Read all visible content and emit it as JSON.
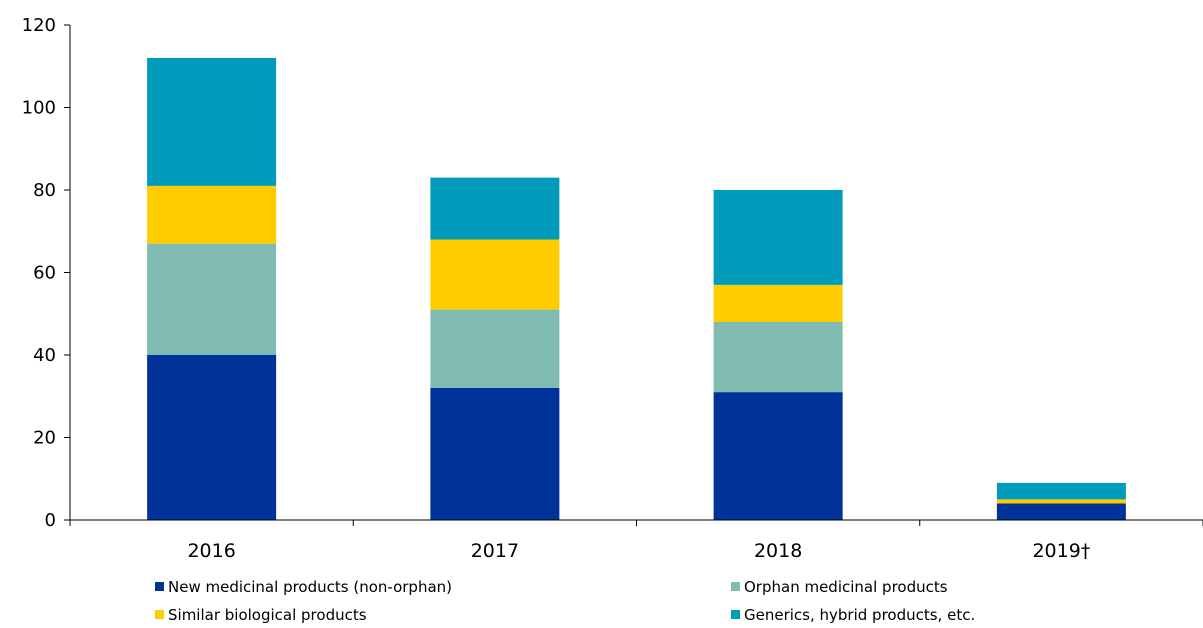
{
  "chart_data": {
    "type": "bar",
    "stacked": true,
    "categories": [
      "2016",
      "2017",
      "2018",
      "2019†"
    ],
    "series": [
      {
        "name": "New medicinal products (non-orphan)",
        "color": "#003399",
        "values": [
          40,
          32,
          31,
          4
        ]
      },
      {
        "name": "Orphan medicinal products",
        "color": "#7fbbb1",
        "values": [
          27,
          19,
          17,
          0
        ]
      },
      {
        "name": "Similar biological products",
        "color": "#ffcc00",
        "values": [
          14,
          17,
          9,
          1
        ]
      },
      {
        "name": "Generics, hybrid products, etc.",
        "color": "#009aba",
        "values": [
          31,
          15,
          23,
          4
        ]
      }
    ],
    "ylim": [
      0,
      120
    ],
    "yticks": [
      0,
      20,
      40,
      60,
      80,
      100,
      120
    ],
    "title": "",
    "xlabel": "",
    "ylabel": "",
    "grid": false,
    "legend_position": "bottom"
  }
}
